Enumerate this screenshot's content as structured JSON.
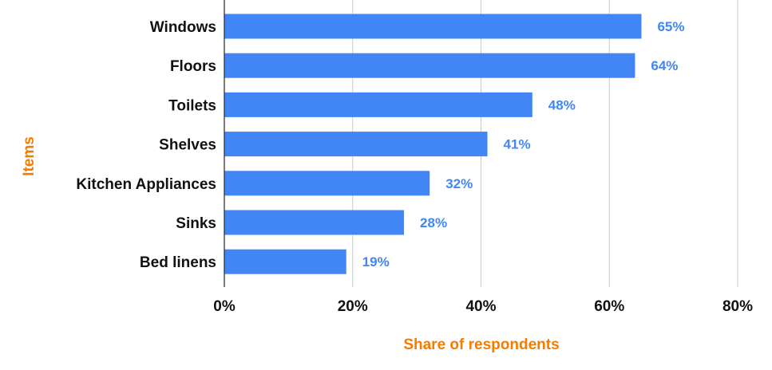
{
  "chart_data": {
    "type": "bar",
    "orientation": "horizontal",
    "categories": [
      "Windows",
      "Floors",
      "Toilets",
      "Shelves",
      "Kitchen Appliances",
      "Sinks",
      "Bed linens"
    ],
    "values": [
      65,
      64,
      48,
      41,
      32,
      28,
      19
    ],
    "value_labels": [
      "65%",
      "64%",
      "48%",
      "41%",
      "32%",
      "28%",
      "19%"
    ],
    "xlabel": "Share of respondents",
    "ylabel": "Items",
    "xlim": [
      0,
      80
    ],
    "x_ticks": [
      0,
      20,
      40,
      60,
      80
    ],
    "x_tick_labels": [
      "0%",
      "20%",
      "40%",
      "60%",
      "80%"
    ],
    "grid": "vertical",
    "legend": "none"
  },
  "colors": {
    "bar": "#4285f4",
    "value_label": "#4285f4",
    "axis_title": "#f57c00",
    "grid": "#cccccc",
    "axis_line": "#333333"
  }
}
